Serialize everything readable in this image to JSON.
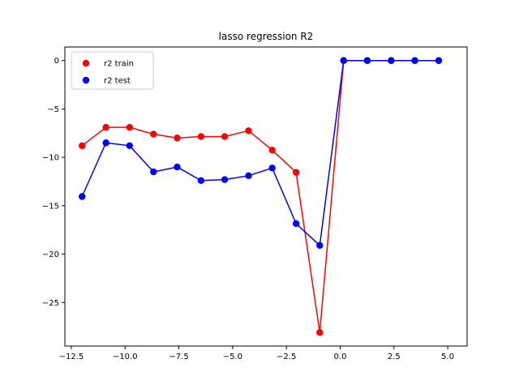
{
  "chart_data": {
    "type": "line",
    "title": "lasso regression R2",
    "xlabel": "",
    "ylabel": "",
    "xlim": [
      -12.8,
      5.9
    ],
    "ylim": [
      -29.5,
      1.4
    ],
    "xticks": [
      -12.5,
      -10.0,
      -7.5,
      -5.0,
      -2.5,
      0.0,
      2.5,
      5.0
    ],
    "xtick_labels": [
      "−12.5",
      "−10.0",
      "−7.5",
      "−5.0",
      "−2.5",
      "0.0",
      "2.5",
      "5.0"
    ],
    "yticks": [
      0,
      -5,
      -10,
      -15,
      -20,
      -25
    ],
    "ytick_labels": [
      "0",
      "−5",
      "−10",
      "−15",
      "−20",
      "−25"
    ],
    "grid": false,
    "legend": {
      "position": "upper-left"
    },
    "x": [
      -12.0,
      -10.89,
      -9.79,
      -8.68,
      -7.58,
      -6.47,
      -5.37,
      -4.26,
      -3.16,
      -2.05,
      -0.95,
      0.16,
      1.26,
      2.37,
      3.47,
      4.58
    ],
    "series": [
      {
        "name": "r2 train",
        "color": "#ff0000",
        "values": [
          -8.8,
          -6.9,
          -6.9,
          -7.6,
          -8.0,
          -7.85,
          -7.85,
          -7.25,
          -9.25,
          -11.55,
          -28.1,
          0.0,
          0.0,
          0.0,
          0.0,
          0.0
        ]
      },
      {
        "name": "r2 test",
        "color": "#0000ff",
        "values": [
          -14.05,
          -8.5,
          -8.8,
          -11.5,
          -11.0,
          -12.4,
          -12.3,
          -11.9,
          -11.1,
          -16.85,
          -19.1,
          0.0,
          0.0,
          0.0,
          0.0,
          0.0
        ]
      }
    ]
  }
}
